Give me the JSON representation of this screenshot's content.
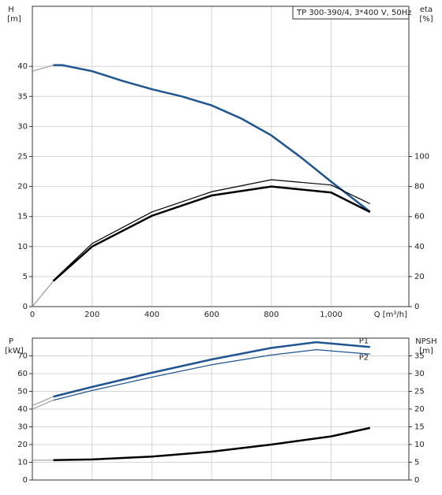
{
  "chart_data": [
    {
      "type": "line",
      "title": "TP 300-390/4, 3*400 V, 50Hz",
      "y_label": "H",
      "y_unit": "[m]",
      "y2_label": "eta",
      "y2_unit": "[%]",
      "x_label": "Q [m³/h]",
      "xlim": [
        0,
        1260
      ],
      "xticks": [
        0,
        200,
        400,
        600,
        800,
        {
          "value": 1000,
          "label": "1,000"
        }
      ],
      "ylim": [
        0,
        50
      ],
      "yticks": [
        0,
        5,
        10,
        15,
        20,
        25,
        30,
        35,
        40
      ],
      "y2lim": [
        0,
        200
      ],
      "y2ticks": [
        0,
        20,
        40,
        60,
        80,
        100
      ],
      "grid": true,
      "series": [
        {
          "color": "#9a9a9a",
          "style": "thin",
          "x": [
            0,
            70
          ],
          "values": [
            39.2,
            40.2
          ]
        },
        {
          "color": "#1f5591",
          "style": "thick",
          "x": [
            70,
            100,
            200,
            300,
            400,
            500,
            600,
            700,
            800,
            900,
            1000,
            1130
          ],
          "values": [
            40.2,
            40.2,
            39.2,
            37.6,
            36.2,
            35,
            33.5,
            31.3,
            28.5,
            24.8,
            20.8,
            15.8
          ]
        },
        {
          "color": "#9a9a9a",
          "style": "thin",
          "axis": "y2",
          "x": [
            0,
            70
          ],
          "values": [
            0,
            17
          ]
        },
        {
          "color": "#000000",
          "style": "thin",
          "axis": "y2",
          "x": [
            70,
            200,
            400,
            600,
            800,
            1000,
            1130
          ],
          "values": [
            17.5,
            42,
            63,
            76.5,
            84.5,
            81,
            68.5
          ]
        },
        {
          "color": "#000000",
          "style": "thick",
          "axis": "y2",
          "x": [
            70,
            200,
            400,
            600,
            800,
            1000,
            1130
          ],
          "values": [
            17,
            40,
            60.5,
            74,
            80,
            76,
            63
          ]
        }
      ]
    },
    {
      "type": "line",
      "y_label": "P",
      "y_unit": "[kW]",
      "y2_label": "NPSH",
      "y2_unit": "[m]",
      "xlim": [
        0,
        1260
      ],
      "xticks": [
        0,
        200,
        400,
        600,
        800,
        1000
      ],
      "ylim": [
        0,
        80
      ],
      "yticks": [
        0,
        10,
        20,
        30,
        40,
        50,
        60,
        70
      ],
      "y2lim": [
        0,
        40
      ],
      "y2ticks": [
        0,
        5,
        10,
        15,
        20,
        25,
        30,
        35
      ],
      "grid": true,
      "series": [
        {
          "color": "#9a9a9a",
          "style": "thin",
          "x": [
            0,
            70
          ],
          "values": [
            42,
            47
          ]
        },
        {
          "color": "#9a9a9a",
          "style": "thin",
          "x": [
            0,
            70
          ],
          "values": [
            40,
            45
          ]
        },
        {
          "name": "P1",
          "color": "#1f5591",
          "style": "thick",
          "x": [
            70,
            200,
            400,
            600,
            800,
            950,
            1130
          ],
          "values": [
            47,
            52.5,
            60.5,
            68,
            74.5,
            77.7,
            75
          ]
        },
        {
          "name": "P2",
          "color": "#1f5591",
          "style": "thin",
          "x": [
            70,
            200,
            400,
            600,
            800,
            950,
            1130
          ],
          "values": [
            45,
            50.5,
            58,
            65,
            70.5,
            73.5,
            71
          ]
        },
        {
          "color": "#9a9a9a",
          "style": "thin",
          "axis": "y2",
          "x": [
            0,
            70
          ],
          "values": [
            5.6,
            5.6
          ]
        },
        {
          "color": "#000000",
          "style": "thick",
          "axis": "y2",
          "x": [
            70,
            200,
            400,
            600,
            800,
            1000,
            1130
          ],
          "values": [
            5.6,
            5.8,
            6.6,
            8,
            10,
            12.3,
            14.7
          ]
        }
      ]
    }
  ]
}
